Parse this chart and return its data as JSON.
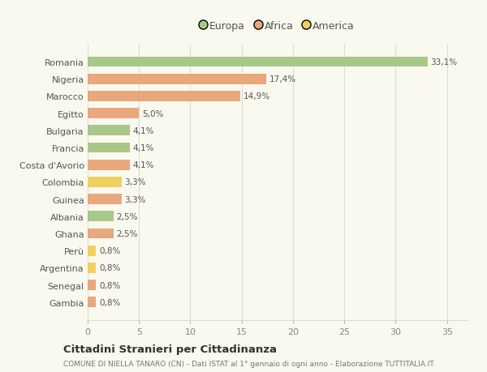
{
  "categories": [
    "Romania",
    "Nigeria",
    "Marocco",
    "Egitto",
    "Bulgaria",
    "Francia",
    "Costa d'Avorio",
    "Colombia",
    "Guinea",
    "Albania",
    "Ghana",
    "Perù",
    "Argentina",
    "Senegal",
    "Gambia"
  ],
  "values": [
    33.1,
    17.4,
    14.9,
    5.0,
    4.1,
    4.1,
    4.1,
    3.3,
    3.3,
    2.5,
    2.5,
    0.8,
    0.8,
    0.8,
    0.8
  ],
  "labels": [
    "33,1%",
    "17,4%",
    "14,9%",
    "5,0%",
    "4,1%",
    "4,1%",
    "4,1%",
    "3,3%",
    "3,3%",
    "2,5%",
    "2,5%",
    "0,8%",
    "0,8%",
    "0,8%",
    "0,8%"
  ],
  "colors": [
    "#a8c88a",
    "#e8a87c",
    "#e8a87c",
    "#e8a87c",
    "#a8c88a",
    "#a8c88a",
    "#e8a87c",
    "#f0d060",
    "#e8a87c",
    "#a8c88a",
    "#e8a87c",
    "#f0d060",
    "#f0d060",
    "#e8a87c",
    "#e8a87c"
  ],
  "legend": [
    {
      "label": "Europa",
      "color": "#a8c88a"
    },
    {
      "label": "Africa",
      "color": "#e8a87c"
    },
    {
      "label": "America",
      "color": "#f0d060"
    }
  ],
  "xlim": [
    0,
    37
  ],
  "xticks": [
    0,
    5,
    10,
    15,
    20,
    25,
    30,
    35
  ],
  "title": "Cittadini Stranieri per Cittadinanza",
  "subtitle": "COMUNE DI NIELLA TANARO (CN) - Dati ISTAT al 1° gennaio di ogni anno - Elaborazione TUTTITALIA.IT",
  "background_color": "#f9f9f0",
  "grid_color": "#ddddcc",
  "bar_height": 0.6,
  "label_fontsize": 7.5,
  "ytick_fontsize": 8.0,
  "xtick_fontsize": 8.0
}
